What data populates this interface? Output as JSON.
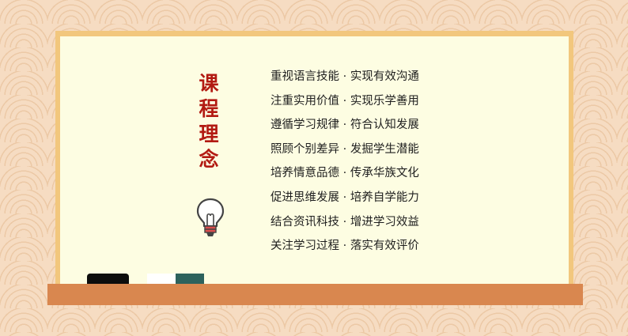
{
  "title": {
    "chars": [
      "课",
      "程",
      "理",
      "念"
    ]
  },
  "principles": [
    "重视语言技能 · 实现有效沟通",
    "注重实用价值 · 实现乐学善用",
    "遵循学习规律 · 符合认知发展",
    "照顾个别差异 · 发掘学生潜能",
    "培养情意品德 · 传承华族文化",
    "促进思维发展 · 培养自学能力",
    "结合资讯科技 · 增进学习效益",
    "关注学习过程 · 落实有效评价"
  ],
  "icons": {
    "bulb": "lightbulb-icon"
  },
  "colors": {
    "background": "#f6dcc2",
    "wave_pattern": "#ecc9a6",
    "board_frame": "#f2c77d",
    "board_surface": "#fdfde2",
    "ledge": "#d9874f",
    "title": "#b21a12",
    "text": "#1e1e1e",
    "eraser_black": "#0d0d0d",
    "eraser_white": "#ffffff",
    "eraser_green": "#2d625d"
  }
}
